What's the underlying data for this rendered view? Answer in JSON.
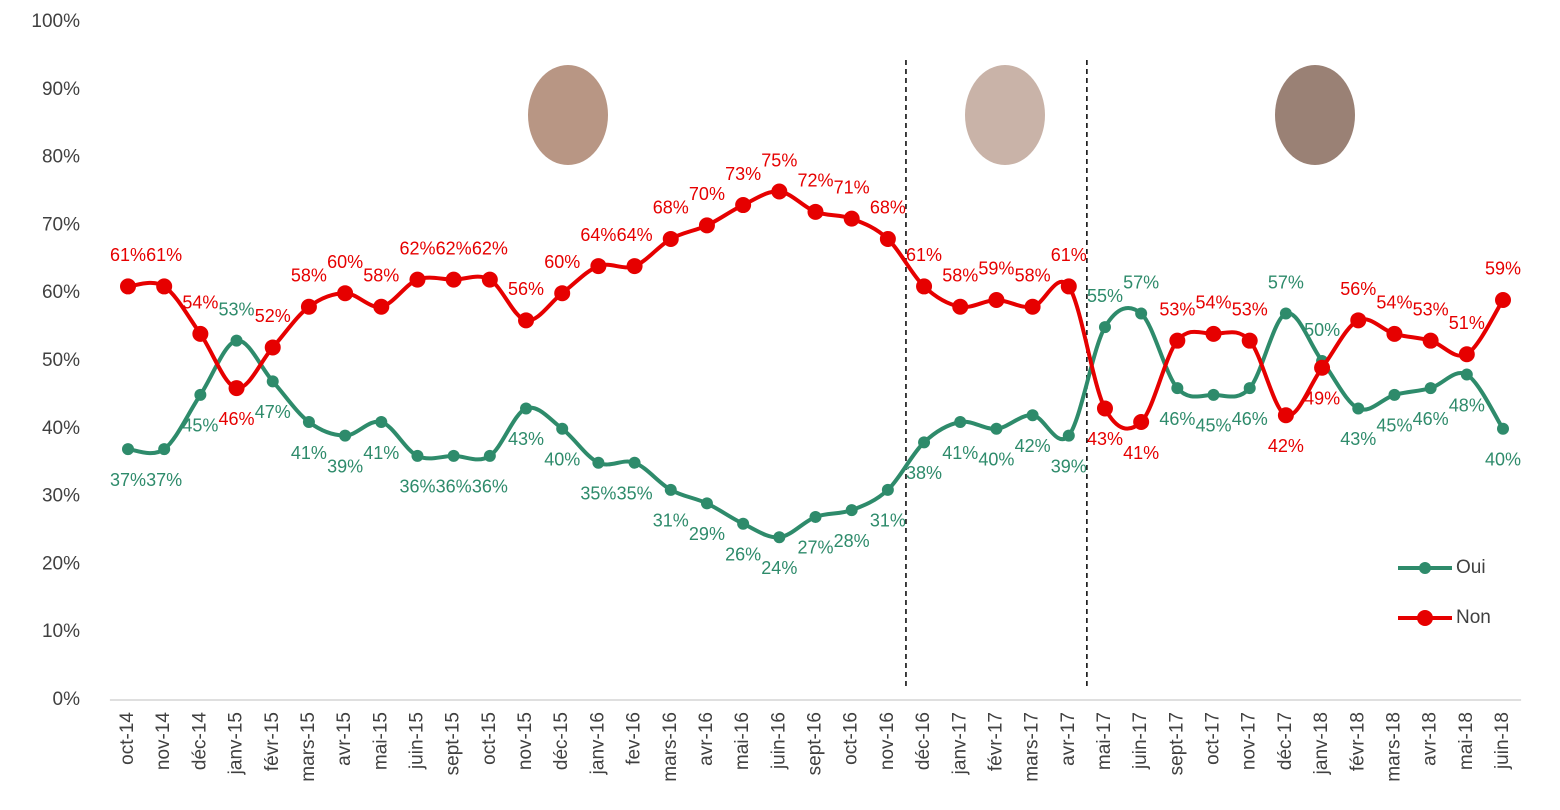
{
  "chart_data": {
    "type": "line",
    "categories": [
      "oct-14",
      "nov-14",
      "déc-14",
      "janv-15",
      "févr-15",
      "mars-15",
      "avr-15",
      "mai-15",
      "juin-15",
      "sept-15",
      "oct-15",
      "nov-15",
      "déc-15",
      "janv-16",
      "fev-16",
      "mars-16",
      "avr-16",
      "mai-16",
      "juin-16",
      "sept-16",
      "oct-16",
      "nov-16",
      "déc-16",
      "janv-17",
      "févr-17",
      "mars-17",
      "avr-17",
      "mai-17",
      "juin-17",
      "sept-17",
      "oct-17",
      "nov-17",
      "déc-17",
      "janv-18",
      "févr-18",
      "mars-18",
      "avr-18",
      "mai-18",
      "juin-18"
    ],
    "series": [
      {
        "name": "Oui",
        "color": "#2e8b6b",
        "values": [
          37,
          37,
          45,
          53,
          47,
          41,
          39,
          41,
          36,
          36,
          36,
          43,
          40,
          35,
          35,
          31,
          29,
          26,
          24,
          27,
          28,
          31,
          38,
          41,
          40,
          42,
          39,
          55,
          57,
          46,
          45,
          46,
          57,
          50,
          43,
          45,
          46,
          48,
          40
        ],
        "value_labels": [
          "37%",
          "37%",
          "45%",
          "53%",
          "47%",
          "41%",
          "39%",
          "41%",
          "36%",
          "36%",
          "36%",
          "43%",
          "40%",
          "35%",
          "35%",
          "31%",
          "29%",
          "26%",
          "24%",
          "27%",
          "28%",
          "31%",
          "38%",
          "41%",
          "40%",
          "42%",
          "39%",
          "55%",
          "57%",
          "46%",
          "45%",
          "46%",
          "57%",
          "50%",
          "43%",
          "45%",
          "46%",
          "48%",
          "40%"
        ]
      },
      {
        "name": "Non",
        "color": "#e60000",
        "values": [
          61,
          61,
          54,
          46,
          52,
          58,
          60,
          58,
          62,
          62,
          62,
          56,
          60,
          64,
          64,
          68,
          70,
          73,
          75,
          72,
          71,
          68,
          61,
          58,
          59,
          58,
          61,
          43,
          41,
          53,
          54,
          53,
          42,
          49,
          56,
          54,
          53,
          51,
          59
        ],
        "value_labels": [
          "61%",
          "61%",
          "54%",
          "46%",
          "52%",
          "58%",
          "60%",
          "58%",
          "62%",
          "62%",
          "62%",
          "56%",
          "60%",
          "64%",
          "64%",
          "68%",
          "70%",
          "73%",
          "75%",
          "72%",
          "71%",
          "68%",
          "61%",
          "58%",
          "59%",
          "58%",
          "61%",
          "43%",
          "41%",
          "53%",
          "54%",
          "53%",
          "42%",
          "49%",
          "56%",
          "54%",
          "53%",
          "51%",
          "59%"
        ]
      }
    ],
    "ylim": [
      0,
      100
    ],
    "yticks": [
      {
        "value": 0,
        "label": "0%"
      },
      {
        "value": 10,
        "label": "10%"
      },
      {
        "value": 20,
        "label": "20%"
      },
      {
        "value": 30,
        "label": "30%"
      },
      {
        "value": 40,
        "label": "40%"
      },
      {
        "value": 50,
        "label": "50%"
      },
      {
        "value": 60,
        "label": "60%"
      },
      {
        "value": 70,
        "label": "70%"
      },
      {
        "value": 80,
        "label": "80%"
      },
      {
        "value": 90,
        "label": "90%"
      },
      {
        "value": 100,
        "label": "100%"
      }
    ],
    "grid": false,
    "legend": "right"
  }
}
